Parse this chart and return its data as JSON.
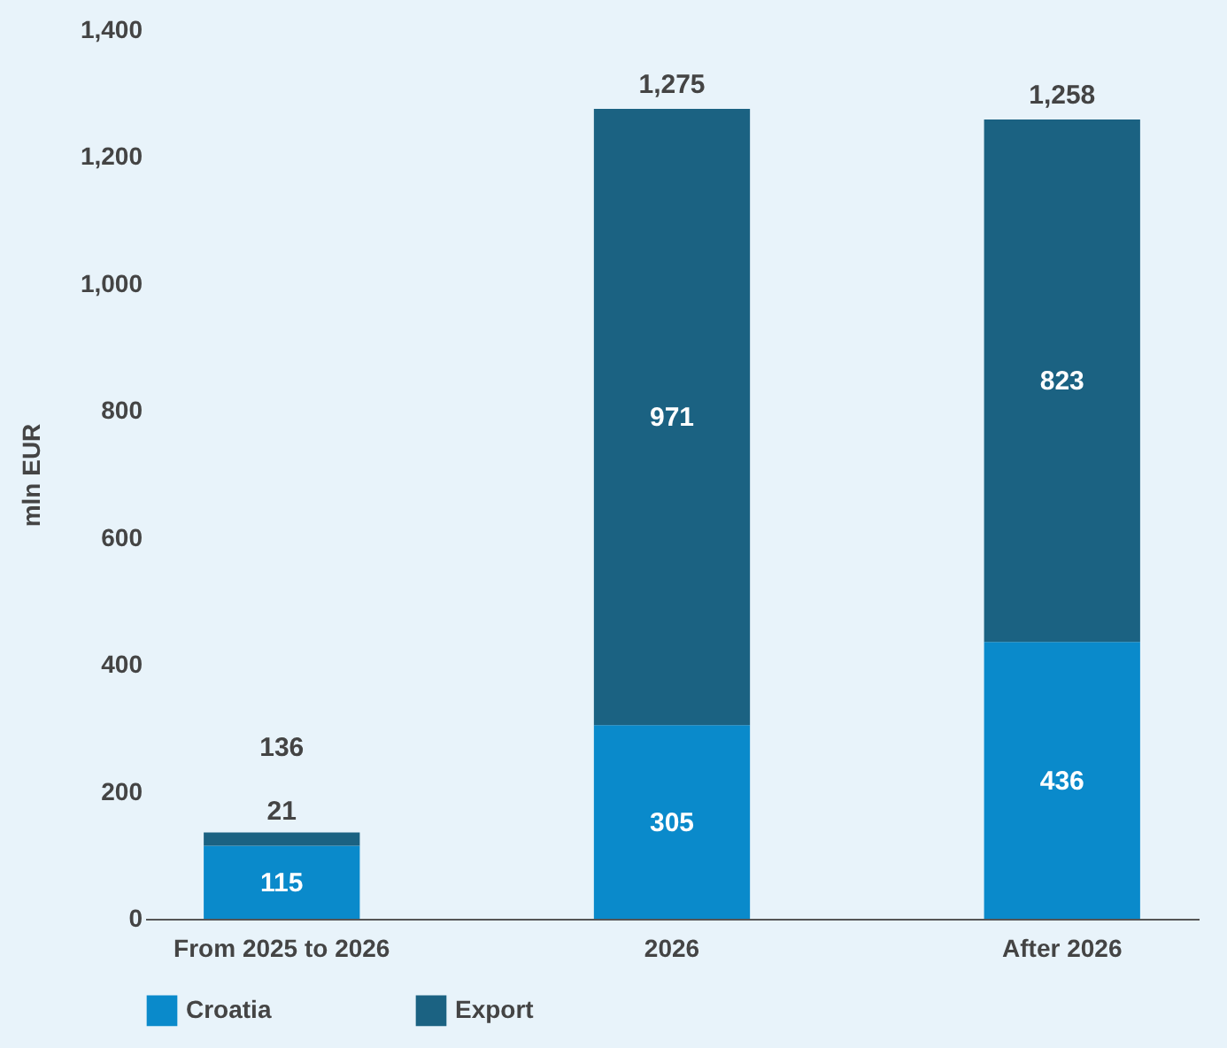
{
  "chart_data": {
    "type": "bar",
    "stacked": true,
    "ylabel": "mln EUR",
    "categories": [
      "From 2025 to 2026",
      "2026",
      "After 2026"
    ],
    "series": [
      {
        "name": "Croatia",
        "color": "#0a8acb",
        "values": [
          115,
          305,
          436
        ]
      },
      {
        "name": "Export",
        "color": "#1b6282",
        "values": [
          21,
          971,
          823
        ]
      }
    ],
    "ylim": [
      0,
      1400
    ],
    "yticks": [
      0,
      200,
      400,
      600,
      800,
      {
        "value": 1000,
        "label": "1,000"
      },
      {
        "value": 1200,
        "label": "1,200"
      },
      {
        "value": 1400,
        "label": "1,400"
      }
    ],
    "data_labels": true,
    "totals": [
      "136",
      "1,275",
      "1,258"
    ],
    "grid": false,
    "legend": "bottom"
  }
}
